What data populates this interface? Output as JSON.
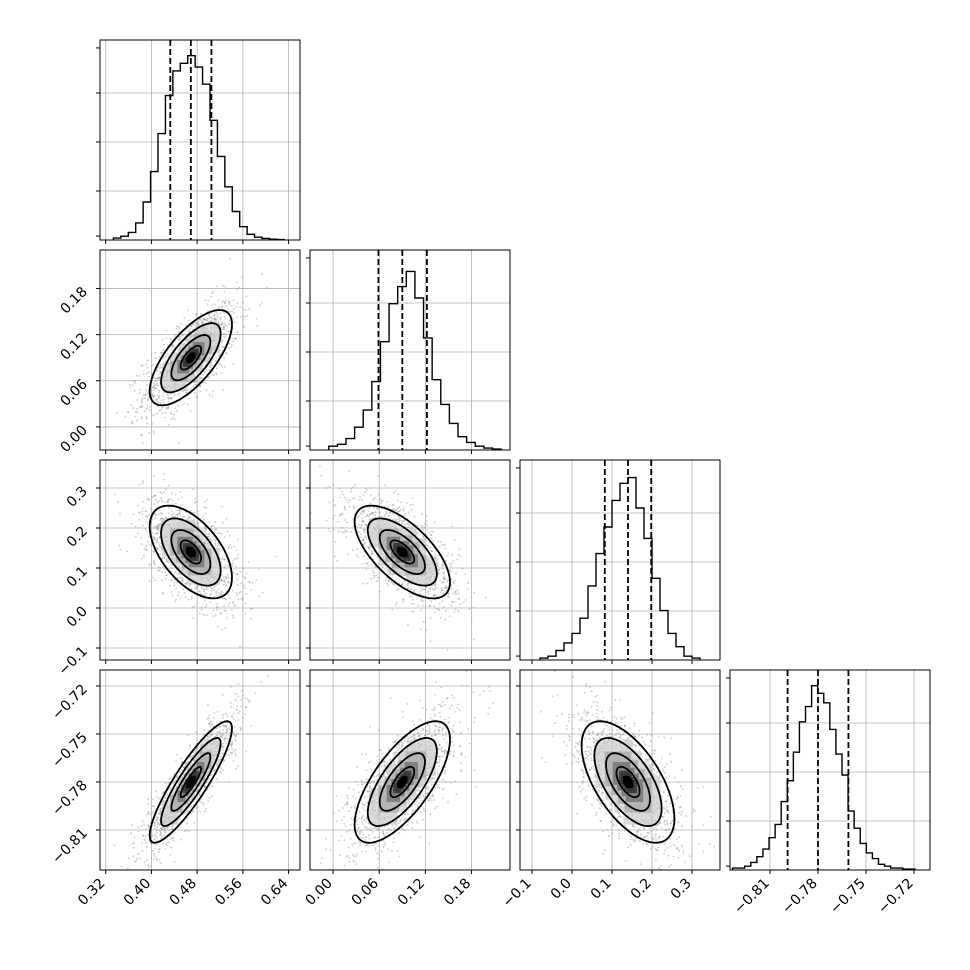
{
  "chart_data": {
    "type": "corner",
    "parameters": 4,
    "grid": true,
    "colors": {
      "frame": "#000000",
      "grid": "#b0b0b0",
      "samples": "#8c8c8c",
      "contour": "#000000",
      "hist": "#000000"
    },
    "tick_labels": [
      [
        "0.32",
        "0.40",
        "0.48",
        "0.56",
        "0.64"
      ],
      [
        "0.00",
        "0.06",
        "0.12",
        "0.18"
      ],
      [
        "−0.1",
        "0.0",
        "0.1",
        "0.2",
        "0.3"
      ],
      [
        "−0.81",
        "−0.78",
        "−0.75",
        "−0.72"
      ]
    ],
    "ticks": [
      [
        0.32,
        0.4,
        0.48,
        0.56,
        0.64
      ],
      [
        0.0,
        0.06,
        0.12,
        0.18
      ],
      [
        -0.1,
        0.0,
        0.1,
        0.2,
        0.3
      ],
      [
        -0.81,
        -0.78,
        -0.75,
        -0.72
      ]
    ],
    "ranges": [
      [
        0.31,
        0.66
      ],
      [
        -0.03,
        0.23
      ],
      [
        -0.13,
        0.37
      ],
      [
        -0.835,
        -0.71
      ]
    ],
    "quantiles": [
      [
        0.433,
        0.469,
        0.505
      ],
      [
        0.059,
        0.09,
        0.122
      ],
      [
        0.082,
        0.14,
        0.198
      ],
      [
        -0.799,
        -0.78,
        -0.761
      ]
    ],
    "histograms": [
      {
        "x": [
          0.34,
          0.353,
          0.366,
          0.379,
          0.392,
          0.405,
          0.418,
          0.431,
          0.444,
          0.457,
          0.47,
          0.483,
          0.496,
          0.509,
          0.522,
          0.535,
          0.548,
          0.561,
          0.574,
          0.587,
          0.6,
          0.613,
          0.626
        ],
        "y": [
          0.01,
          0.02,
          0.04,
          0.09,
          0.2,
          0.36,
          0.56,
          0.76,
          0.89,
          0.93,
          0.97,
          0.91,
          0.82,
          0.63,
          0.44,
          0.28,
          0.15,
          0.07,
          0.03,
          0.015,
          0.008,
          0.004,
          0.002
        ]
      },
      {
        "x": [
          0.0,
          0.0112,
          0.0224,
          0.0336,
          0.0448,
          0.056,
          0.0672,
          0.0784,
          0.0896,
          0.1008,
          0.112,
          0.1232,
          0.1344,
          0.1456,
          0.1568,
          0.168,
          0.1792,
          0.1904,
          0.2016,
          0.2128
        ],
        "y": [
          0.02,
          0.03,
          0.06,
          0.12,
          0.21,
          0.36,
          0.57,
          0.77,
          0.86,
          0.94,
          0.8,
          0.59,
          0.37,
          0.24,
          0.14,
          0.07,
          0.04,
          0.02,
          0.01,
          0.005
        ]
      },
      {
        "x": [
          -0.07,
          -0.05,
          -0.03,
          -0.01,
          0.01,
          0.03,
          0.05,
          0.07,
          0.09,
          0.11,
          0.13,
          0.15,
          0.17,
          0.19,
          0.21,
          0.23,
          0.25,
          0.27,
          0.29,
          0.31
        ],
        "y": [
          0.01,
          0.02,
          0.05,
          0.09,
          0.14,
          0.22,
          0.39,
          0.56,
          0.7,
          0.84,
          0.93,
          0.96,
          0.8,
          0.64,
          0.43,
          0.26,
          0.14,
          0.07,
          0.02,
          0.01
        ]
      },
      {
        "x": [
          -0.8315,
          -0.8277,
          -0.8239,
          -0.8201,
          -0.8163,
          -0.8125,
          -0.8087,
          -0.8049,
          -0.8011,
          -0.7973,
          -0.7935,
          -0.7897,
          -0.7859,
          -0.7821,
          -0.7783,
          -0.7745,
          -0.7707,
          -0.7669,
          -0.7631,
          -0.7593,
          -0.7555,
          -0.7517,
          -0.7479,
          -0.7441,
          -0.7403,
          -0.7365,
          -0.7327,
          -0.7289,
          -0.7251,
          -0.7213
        ],
        "y": [
          0.01,
          0.01,
          0.02,
          0.04,
          0.07,
          0.11,
          0.17,
          0.24,
          0.36,
          0.47,
          0.62,
          0.78,
          0.86,
          0.97,
          0.93,
          0.88,
          0.74,
          0.61,
          0.5,
          0.31,
          0.22,
          0.14,
          0.09,
          0.06,
          0.03,
          0.02,
          0.01,
          0.01,
          0.005,
          0.005
        ]
      }
    ],
    "correlations": [
      [
        1.0,
        0.7,
        -0.55,
        0.88
      ],
      [
        0.7,
        1.0,
        -0.65,
        0.7
      ],
      [
        -0.55,
        -0.65,
        1.0,
        -0.6
      ],
      [
        0.88,
        0.7,
        -0.6,
        1.0
      ]
    ],
    "sigmas": [
      0.036,
      0.031,
      0.058,
      0.019
    ],
    "medians": [
      0.469,
      0.09,
      0.14,
      -0.78
    ]
  }
}
